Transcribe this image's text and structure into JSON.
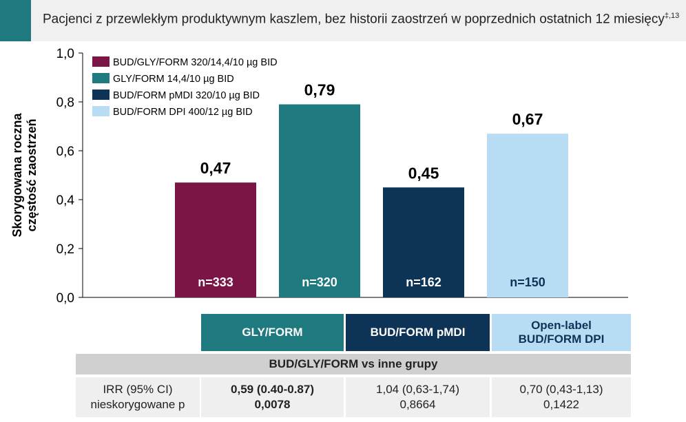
{
  "header": {
    "title": "Pacjenci z przewlekłym produktywnym kaszlem, bez historii zaostrzeń w poprzednich ostatnich 12 miesięcy",
    "superscript": "‡,13"
  },
  "colors": {
    "accent": "#1f7a80",
    "bud_gly_form": "#7b1546",
    "gly_form": "#1f7a80",
    "bud_form_pmdi": "#0d3456",
    "bud_form_dpi": "#b9dcf5"
  },
  "chart_data": {
    "type": "bar",
    "ylabel": "Skorygowana roczna częstość zaostrzeń",
    "ylim": [
      0,
      1
    ],
    "yticks": [
      "0,0",
      "0,2",
      "0,4",
      "0,6",
      "0,8",
      "1,0"
    ],
    "yticks_values": [
      0,
      0.2,
      0.4,
      0.6,
      0.8,
      1.0
    ],
    "grid": false,
    "legend_position": "top-left",
    "series": [
      {
        "name": "BUD/GLY/FORM 320/14,4/10 µg BID",
        "value": 0.47,
        "label": "0,47",
        "n": "n=333",
        "color": "#7b1546",
        "text_color": "#ffffff"
      },
      {
        "name": "GLY/FORM 14,4/10 µg BID",
        "value": 0.79,
        "label": "0,79",
        "n": "n=320",
        "color": "#1f7a80",
        "text_color": "#ffffff"
      },
      {
        "name": "BUD/FORM pMDI 320/10 µg BID",
        "value": 0.45,
        "label": "0,45",
        "n": "n=162",
        "color": "#0d3456",
        "text_color": "#ffffff"
      },
      {
        "name": "BUD/FORM DPI 400/12 µg BID",
        "value": 0.67,
        "label": "0,67",
        "n": "n=150",
        "color": "#b9dcf5",
        "text_color": "#0d3456"
      }
    ]
  },
  "table": {
    "col_headers": [
      "GLY/FORM",
      "BUD/FORM pMDI",
      "Open-label\nBUD/FORM DPI"
    ],
    "subheader": "BUD/GLY/FORM vs inne grupy",
    "row_label": [
      "IRR (95% CI)",
      "nieskorygowane p"
    ],
    "cells": [
      [
        "0,59 (0.40-0.87)",
        "0,0078"
      ],
      [
        "1,04 (0,63-1,74)",
        "0,8664"
      ],
      [
        "0,70 (0,43-1,13)",
        "0,1422"
      ]
    ]
  }
}
